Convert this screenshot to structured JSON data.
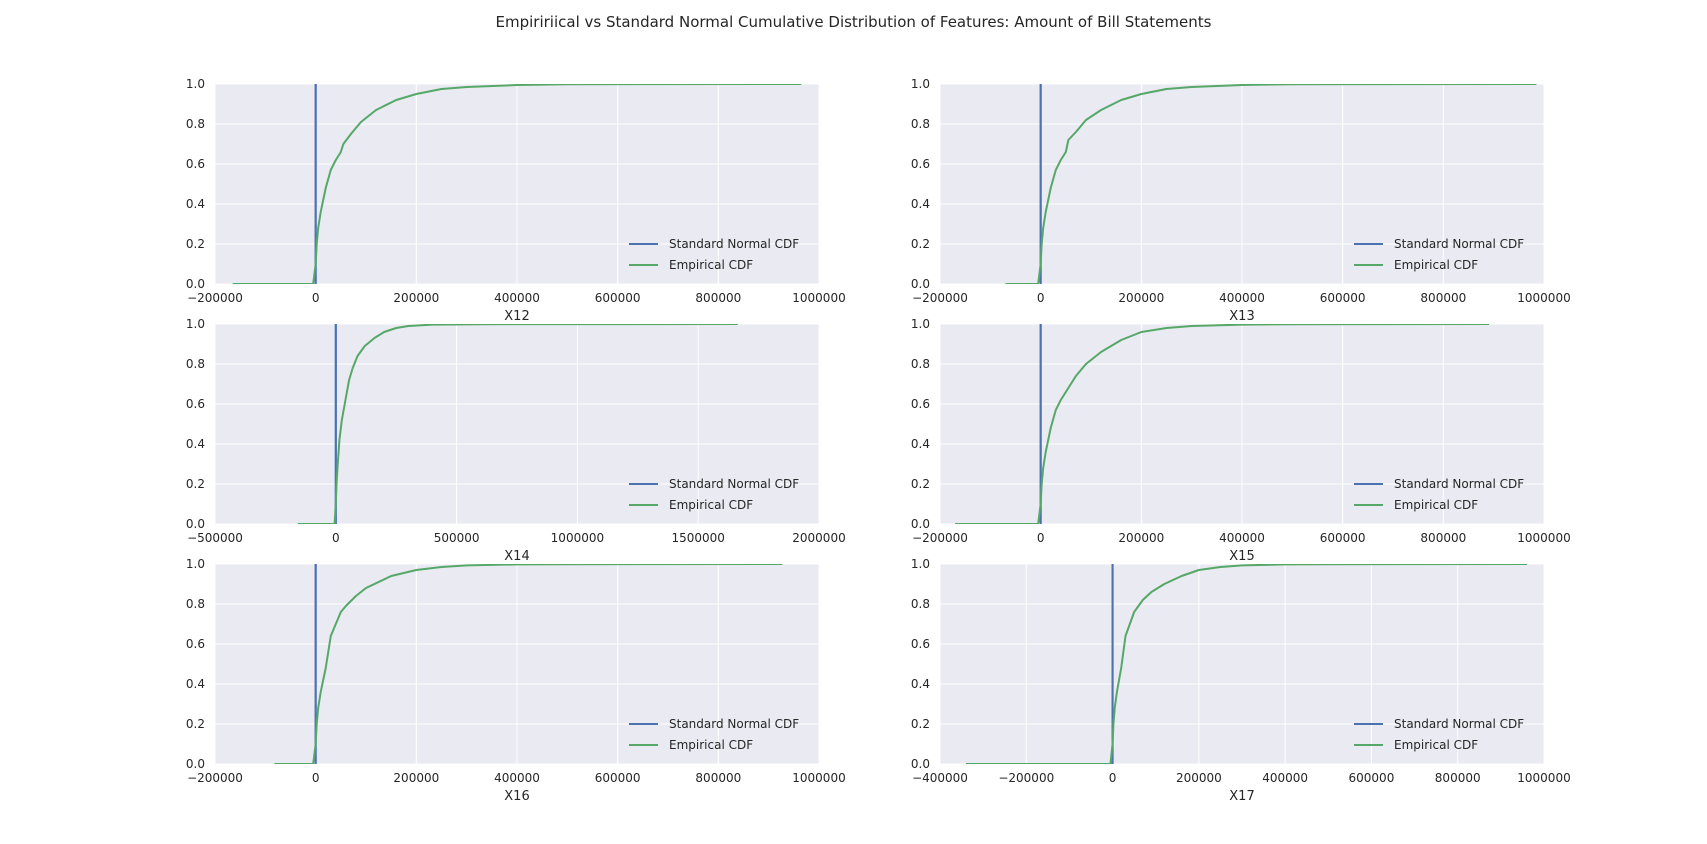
{
  "figure": {
    "title": "Empiririical vs Standard Normal Cumulative Distribution of Features: Amount of Bill Statements"
  },
  "colors": {
    "axes_background": "#EAEAF2",
    "grid": "#ffffff",
    "standard_normal": "#4C72B0",
    "empirical": "#55A868",
    "text": "#262626"
  },
  "chart_data": [
    {
      "type": "line",
      "xlabel": "X12",
      "ylabel": "",
      "xlim": [
        -200000,
        1000000
      ],
      "ylim": [
        0,
        1
      ],
      "xticks": [
        -200000,
        0,
        200000,
        400000,
        600000,
        800000,
        1000000
      ],
      "xtick_labels": [
        "−200000",
        "0",
        "200000",
        "400000",
        "600000",
        "800000",
        "1000000"
      ],
      "yticks": [
        0,
        0.2,
        0.4,
        0.6,
        0.8,
        1.0
      ],
      "ytick_labels": [
        "0.0",
        "0.2",
        "0.4",
        "0.6",
        "0.8",
        "1.0"
      ],
      "grid": true,
      "legend": "lower-right",
      "series": [
        {
          "name": "Standard Normal CDF",
          "x": [
            -3,
            -2,
            -1,
            0,
            1,
            2,
            3
          ],
          "y": [
            0.001,
            0.023,
            0.159,
            0.5,
            0.841,
            0.977,
            0.999
          ]
        },
        {
          "name": "Empirical CDF",
          "x": [
            -165000,
            -5000,
            0,
            2000,
            5000,
            10000,
            20000,
            30000,
            40000,
            50000,
            55000,
            70000,
            90000,
            120000,
            160000,
            200000,
            250000,
            300000,
            400000,
            500000,
            965000
          ],
          "y": [
            0,
            0,
            0.1,
            0.2,
            0.28,
            0.36,
            0.48,
            0.57,
            0.62,
            0.66,
            0.7,
            0.75,
            0.81,
            0.87,
            0.92,
            0.95,
            0.975,
            0.985,
            0.995,
            0.999,
            1.0
          ]
        }
      ]
    },
    {
      "type": "line",
      "xlabel": "X13",
      "ylabel": "",
      "xlim": [
        -200000,
        1000000
      ],
      "ylim": [
        0,
        1
      ],
      "xticks": [
        -200000,
        0,
        200000,
        400000,
        600000,
        800000,
        1000000
      ],
      "xtick_labels": [
        "−200000",
        "0",
        "200000",
        "400000",
        "600000",
        "800000",
        "1000000"
      ],
      "yticks": [
        0,
        0.2,
        0.4,
        0.6,
        0.8,
        1.0
      ],
      "ytick_labels": [
        "0.0",
        "0.2",
        "0.4",
        "0.6",
        "0.8",
        "1.0"
      ],
      "grid": true,
      "legend": "lower-right",
      "series": [
        {
          "name": "Standard Normal CDF",
          "x": [
            -3,
            -2,
            -1,
            0,
            1,
            2,
            3
          ],
          "y": [
            0.001,
            0.023,
            0.159,
            0.5,
            0.841,
            0.977,
            0.999
          ]
        },
        {
          "name": "Empirical CDF",
          "x": [
            -70000,
            -5000,
            0,
            2000,
            5000,
            10000,
            20000,
            30000,
            40000,
            50000,
            55000,
            70000,
            90000,
            120000,
            160000,
            200000,
            250000,
            300000,
            400000,
            500000,
            985000
          ],
          "y": [
            0,
            0,
            0.1,
            0.2,
            0.28,
            0.36,
            0.48,
            0.57,
            0.62,
            0.66,
            0.72,
            0.76,
            0.82,
            0.87,
            0.92,
            0.95,
            0.975,
            0.985,
            0.995,
            0.999,
            1.0
          ]
        }
      ]
    },
    {
      "type": "line",
      "xlabel": "X14",
      "ylabel": "",
      "xlim": [
        -500000,
        2000000
      ],
      "ylim": [
        0,
        1
      ],
      "xticks": [
        -500000,
        0,
        500000,
        1000000,
        1500000,
        2000000
      ],
      "xtick_labels": [
        "−500000",
        "0",
        "500000",
        "1000000",
        "1500000",
        "2000000"
      ],
      "yticks": [
        0,
        0.2,
        0.4,
        0.6,
        0.8,
        1.0
      ],
      "ytick_labels": [
        "0.0",
        "0.2",
        "0.4",
        "0.6",
        "0.8",
        "1.0"
      ],
      "grid": true,
      "legend": "lower-right",
      "series": [
        {
          "name": "Standard Normal CDF",
          "x": [
            -3,
            -2,
            -1,
            0,
            1,
            2,
            3
          ],
          "y": [
            0.001,
            0.023,
            0.159,
            0.5,
            0.841,
            0.977,
            0.999
          ]
        },
        {
          "name": "Empirical CDF",
          "x": [
            -157000,
            -5000,
            0,
            3000,
            8000,
            15000,
            25000,
            40000,
            55000,
            70000,
            90000,
            120000,
            160000,
            200000,
            250000,
            300000,
            400000,
            600000,
            1664000
          ],
          "y": [
            0,
            0,
            0.1,
            0.2,
            0.3,
            0.42,
            0.52,
            0.62,
            0.72,
            0.78,
            0.84,
            0.89,
            0.93,
            0.96,
            0.98,
            0.99,
            0.997,
            0.999,
            1.0
          ]
        }
      ]
    },
    {
      "type": "line",
      "xlabel": "X15",
      "ylabel": "",
      "xlim": [
        -200000,
        1000000
      ],
      "ylim": [
        0,
        1
      ],
      "xticks": [
        -200000,
        0,
        200000,
        400000,
        600000,
        800000,
        1000000
      ],
      "xtick_labels": [
        "−200000",
        "0",
        "200000",
        "400000",
        "600000",
        "800000",
        "1000000"
      ],
      "yticks": [
        0,
        0.2,
        0.4,
        0.6,
        0.8,
        1.0
      ],
      "ytick_labels": [
        "0.0",
        "0.2",
        "0.4",
        "0.6",
        "0.8",
        "1.0"
      ],
      "grid": true,
      "legend": "lower-right",
      "series": [
        {
          "name": "Standard Normal CDF",
          "x": [
            -3,
            -2,
            -1,
            0,
            1,
            2,
            3
          ],
          "y": [
            0.001,
            0.023,
            0.159,
            0.5,
            0.841,
            0.977,
            0.999
          ]
        },
        {
          "name": "Empirical CDF",
          "x": [
            -170000,
            -5000,
            0,
            2000,
            5000,
            10000,
            20000,
            30000,
            40000,
            50000,
            60000,
            70000,
            90000,
            120000,
            160000,
            200000,
            250000,
            300000,
            400000,
            500000,
            891000
          ],
          "y": [
            0,
            0,
            0.1,
            0.2,
            0.28,
            0.36,
            0.48,
            0.57,
            0.62,
            0.66,
            0.7,
            0.74,
            0.8,
            0.86,
            0.92,
            0.96,
            0.98,
            0.99,
            0.997,
            0.999,
            1.0
          ]
        }
      ]
    },
    {
      "type": "line",
      "xlabel": "X16",
      "ylabel": "",
      "xlim": [
        -200000,
        1000000
      ],
      "ylim": [
        0,
        1
      ],
      "xticks": [
        -200000,
        0,
        200000,
        400000,
        600000,
        800000,
        1000000
      ],
      "xtick_labels": [
        "−200000",
        "0",
        "200000",
        "400000",
        "600000",
        "800000",
        "1000000"
      ],
      "yticks": [
        0,
        0.2,
        0.4,
        0.6,
        0.8,
        1.0
      ],
      "ytick_labels": [
        "0.0",
        "0.2",
        "0.4",
        "0.6",
        "0.8",
        "1.0"
      ],
      "grid": true,
      "legend": "lower-right",
      "series": [
        {
          "name": "Standard Normal CDF",
          "x": [
            -3,
            -2,
            -1,
            0,
            1,
            2,
            3
          ],
          "y": [
            0.001,
            0.023,
            0.159,
            0.5,
            0.841,
            0.977,
            0.999
          ]
        },
        {
          "name": "Empirical CDF",
          "x": [
            -82000,
            -5000,
            0,
            2000,
            5000,
            10000,
            20000,
            25000,
            30000,
            40000,
            50000,
            60000,
            80000,
            100000,
            150000,
            200000,
            250000,
            300000,
            400000,
            500000,
            927000
          ],
          "y": [
            0,
            0,
            0.1,
            0.2,
            0.28,
            0.36,
            0.48,
            0.56,
            0.64,
            0.7,
            0.76,
            0.79,
            0.84,
            0.88,
            0.94,
            0.97,
            0.985,
            0.993,
            0.998,
            0.999,
            1.0
          ]
        }
      ]
    },
    {
      "type": "line",
      "xlabel": "X17",
      "ylabel": "",
      "xlim": [
        -400000,
        1000000
      ],
      "ylim": [
        0,
        1
      ],
      "xticks": [
        -400000,
        -200000,
        0,
        200000,
        400000,
        600000,
        800000,
        1000000
      ],
      "xtick_labels": [
        "−400000",
        "−200000",
        "0",
        "200000",
        "400000",
        "600000",
        "800000",
        "1000000"
      ],
      "yticks": [
        0,
        0.2,
        0.4,
        0.6,
        0.8,
        1.0
      ],
      "ytick_labels": [
        "0.0",
        "0.2",
        "0.4",
        "0.6",
        "0.8",
        "1.0"
      ],
      "grid": true,
      "legend": "lower-right",
      "series": [
        {
          "name": "Standard Normal CDF",
          "x": [
            -3,
            -2,
            -1,
            0,
            1,
            2,
            3
          ],
          "y": [
            0.001,
            0.023,
            0.159,
            0.5,
            0.841,
            0.977,
            0.999
          ]
        },
        {
          "name": "Empirical CDF",
          "x": [
            -340000,
            -5000,
            0,
            2000,
            5000,
            10000,
            20000,
            25000,
            30000,
            40000,
            50000,
            70000,
            90000,
            120000,
            160000,
            200000,
            250000,
            300000,
            400000,
            500000,
            961000
          ],
          "y": [
            0,
            0,
            0.1,
            0.2,
            0.28,
            0.36,
            0.48,
            0.56,
            0.64,
            0.7,
            0.76,
            0.82,
            0.86,
            0.9,
            0.94,
            0.97,
            0.985,
            0.993,
            0.998,
            0.999,
            1.0
          ]
        }
      ]
    }
  ]
}
